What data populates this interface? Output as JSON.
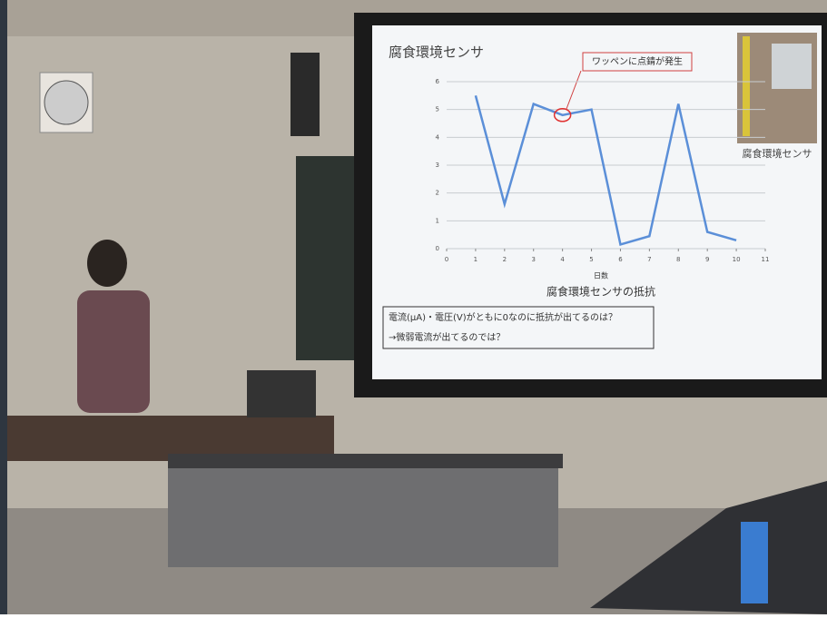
{
  "slide": {
    "title": "腐食環境センサ",
    "image_caption": "腐食環境センサ",
    "note_lines": [
      "電流(μA)・電圧(V)がともに0なのに抵抗が出てるのは？",
      "→微弱電流が出てるのでは？"
    ]
  },
  "chart_data": {
    "type": "line",
    "title": "腐食環境センサの抵抗",
    "x_label": "日数",
    "annotation": "ワッペンに点錆が発生",
    "x": [
      1,
      2,
      3,
      4,
      5,
      6,
      7,
      8,
      9,
      10
    ],
    "series": [
      {
        "name": "抵抗",
        "color": "#5b8fd8",
        "values": [
          5.5,
          1.6,
          5.2,
          4.8,
          5.0,
          0.15,
          0.45,
          5.2,
          0.6,
          0.3
        ]
      }
    ],
    "xlim": [
      0,
      11
    ],
    "xticks": [
      0,
      1,
      2,
      3,
      4,
      5,
      6,
      7,
      8,
      9,
      10,
      11
    ],
    "ylim": [
      0,
      6
    ],
    "yticks": [
      0,
      1,
      2,
      3,
      4,
      5,
      6
    ],
    "grid": true
  }
}
